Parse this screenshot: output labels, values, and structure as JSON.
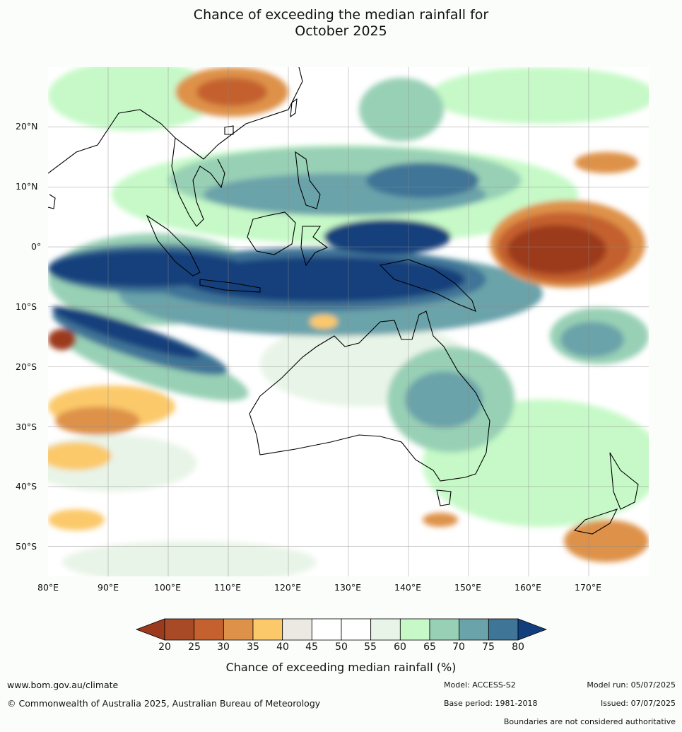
{
  "title_line1": "Chance of exceeding the median rainfall for",
  "title_line2": "October 2025",
  "map": {
    "lon_ticks": [
      "80°E",
      "90°E",
      "100°E",
      "110°E",
      "120°E",
      "130°E",
      "140°E",
      "150°E",
      "160°E",
      "170°E"
    ],
    "lat_ticks": [
      "20°N",
      "10°N",
      "0°",
      "10°S",
      "20°S",
      "30°S",
      "40°S",
      "50°S"
    ],
    "extent": {
      "lon_min": 80,
      "lon_max": 180,
      "lat_min": -55,
      "lat_max": 30
    },
    "features": [
      {
        "name": "east-pacific-dry-anomaly",
        "lon": 167,
        "lat": -0.5,
        "value": 20
      },
      {
        "name": "maritime-continent-wet-anomaly",
        "lon": 122,
        "lat": -1,
        "value": 80
      },
      {
        "name": "east-indian-ocean-wet-anomaly",
        "lon": 88,
        "lat": -2,
        "value": 80
      },
      {
        "name": "south-china-dry-anomaly",
        "lon": 113,
        "lat": 25,
        "value": 30
      },
      {
        "name": "east-australia-wet-anomaly",
        "lon": 146,
        "lat": -25,
        "value": 70
      },
      {
        "name": "nz-east-dry-anomaly",
        "lon": 175,
        "lat": -50,
        "value": 30
      },
      {
        "name": "southwest-indian-dry-anomaly",
        "lon": 86,
        "lat": -27,
        "value": 30
      }
    ]
  },
  "colorbar": {
    "labels": [
      "20",
      "25",
      "30",
      "35",
      "40",
      "45",
      "50",
      "55",
      "60",
      "65",
      "70",
      "75",
      "80"
    ],
    "colors": [
      "#9c3a1e",
      "#a94a27",
      "#c4612f",
      "#de9249",
      "#fbc96a",
      "#ece9e3",
      "#ffffff",
      "#ffffff",
      "#e8f4e7",
      "#c6f9c7",
      "#98d0b5",
      "#6aa3aa",
      "#3f7597",
      "#123f7c"
    ],
    "title": "Chance of exceeding median rainfall (%)"
  },
  "footer": {
    "url": "www.bom.gov.au/climate",
    "copyright": "© Commonwealth of Australia 2025, Australian Bureau of Meteorology",
    "model": "Model: ACCESS-S2",
    "base_period": "Base period: 1981-2018",
    "model_run": "Model run: 05/07/2025",
    "issued": "Issued: 07/07/2025",
    "disclaimer": "Boundaries are not considered authoritative"
  }
}
